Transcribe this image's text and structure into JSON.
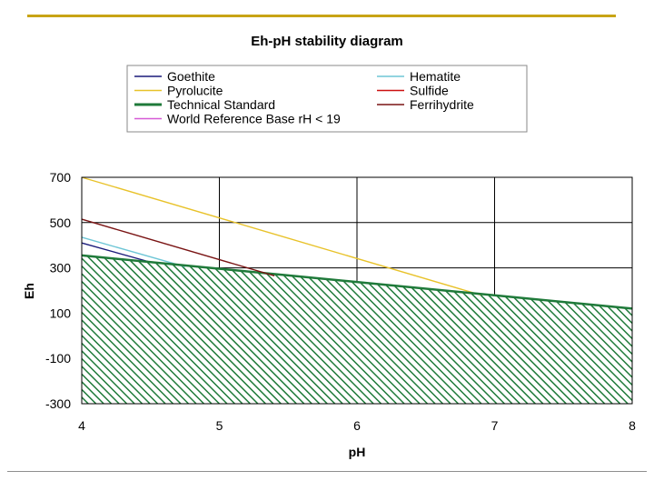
{
  "chart_data": {
    "type": "line",
    "title": "Eh-pH stability diagram",
    "xlabel": "pH",
    "ylabel": "Eh",
    "xlim": [
      4,
      8
    ],
    "ylim": [
      -300,
      700
    ],
    "x_ticks": [
      "4",
      "5",
      "6",
      "7",
      "8"
    ],
    "y_ticks": [
      "700",
      "500",
      "300",
      "100",
      "-100",
      "-300"
    ],
    "grid": true,
    "legend_position": "top",
    "series": [
      {
        "name": "Goethite",
        "color": "#1a1a7a",
        "x": [
          4.0,
          4.5
        ],
        "y": [
          410,
          325
        ]
      },
      {
        "name": "Hematite",
        "color": "#6ec6d6",
        "x": [
          4.0,
          4.75
        ],
        "y": [
          435,
          305
        ]
      },
      {
        "name": "Pyrolucite",
        "color": "#e8c22a",
        "x": [
          4.0,
          6.9
        ],
        "y": [
          700,
          180
        ]
      },
      {
        "name": "Sulfide",
        "color": "#cc1111",
        "x": [],
        "y": []
      },
      {
        "name": "Technical Standard",
        "color": "#1f7a3a",
        "x": [
          4.0,
          8.0
        ],
        "y": [
          355,
          120
        ]
      },
      {
        "name": "Ferrihydrite",
        "color": "#7a1414",
        "x": [
          4.0,
          5.4
        ],
        "y": [
          515,
          265
        ]
      },
      {
        "name": "World Reference Base rH < 19",
        "color": "#d65ad6",
        "x": [],
        "y": []
      }
    ],
    "shaded_region": {
      "series": "Technical Standard",
      "below": true,
      "pattern": "diagonal-hatch",
      "color": "#1f7a3a"
    }
  }
}
